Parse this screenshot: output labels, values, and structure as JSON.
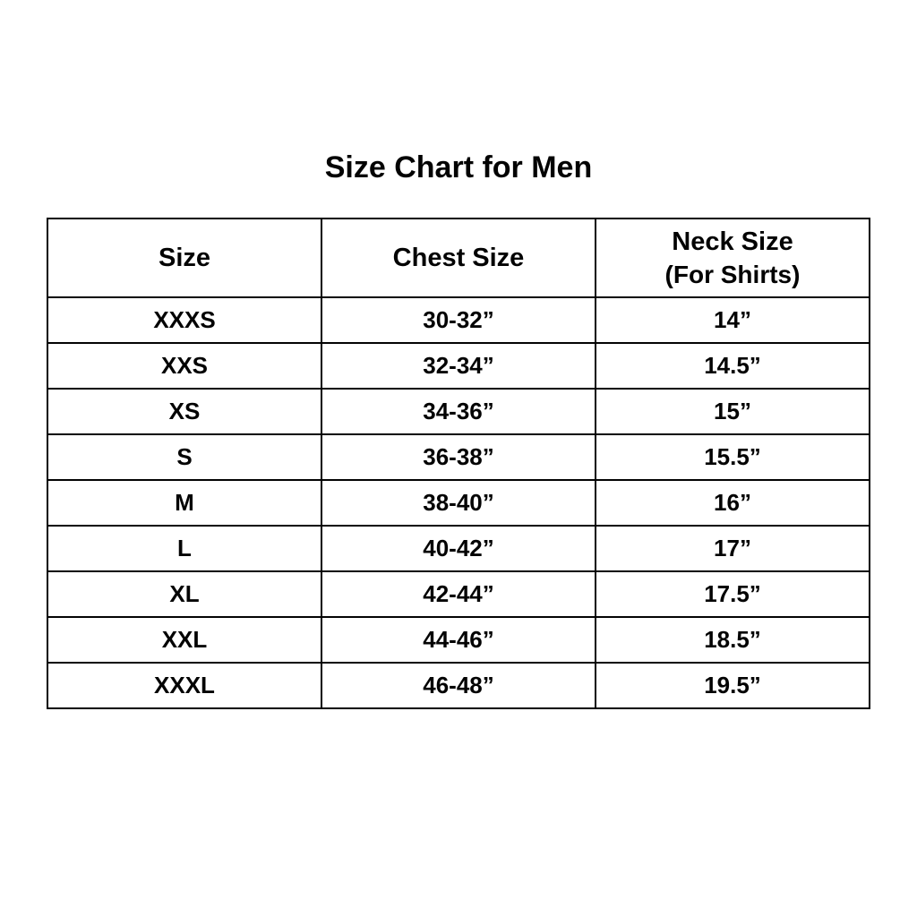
{
  "chart_data": {
    "type": "table",
    "title": "Size Chart for Men",
    "columns": [
      {
        "label": "Size"
      },
      {
        "label": "Chest Size"
      },
      {
        "label": "Neck Size",
        "sublabel": "(For Shirts)"
      }
    ],
    "rows": [
      [
        "XXXS",
        "30-32”",
        "14”"
      ],
      [
        "XXS",
        "32-34”",
        "14.5”"
      ],
      [
        "XS",
        "34-36”",
        "15”"
      ],
      [
        "S",
        "36-38”",
        "15.5”"
      ],
      [
        "M",
        "38-40”",
        "16”"
      ],
      [
        "L",
        "40-42”",
        "17”"
      ],
      [
        "XL",
        "42-44”",
        "17.5”"
      ],
      [
        "XXL",
        "44-46”",
        "18.5”"
      ],
      [
        "XXXL",
        "46-48”",
        "19.5”"
      ]
    ],
    "layout": {
      "text_color": "#030303",
      "background_color": "#ffffff",
      "border_color": "#030303"
    }
  }
}
